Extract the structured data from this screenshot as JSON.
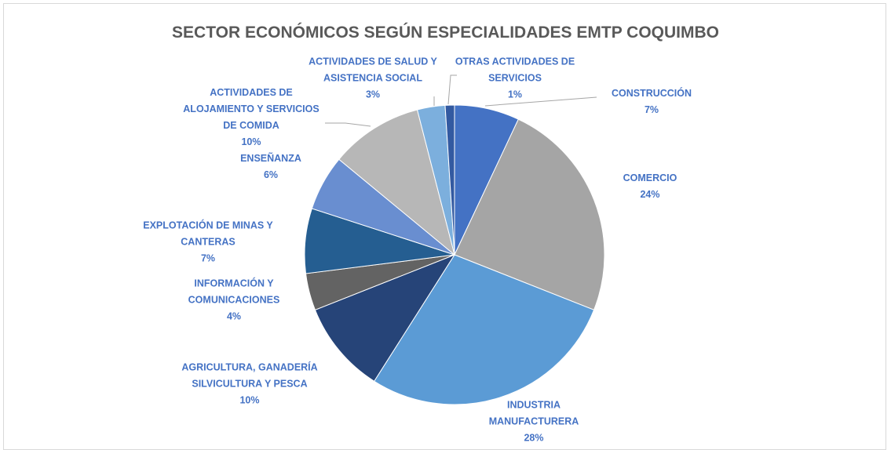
{
  "chart_data": {
    "type": "pie",
    "title": "SECTOR ECONÓMICOS SEGÚN ESPECIALIDADES EMTP COQUIMBO",
    "categories": [
      "CONSTRUCCIÓN",
      "COMERCIO",
      "INDUSTRIA MANUFACTURERA",
      "AGRICULTURA, GANADERÍA SILVICULTURA Y PESCA",
      "INFORMACIÓN Y COMUNICACIONES",
      "EXPLOTACIÓN DE MINAS Y CANTERAS",
      "ENSEÑANZA",
      "ACTIVIDADES DE ALOJAMIENTO Y SERVICIOS DE COMIDA",
      "ACTIVIDADES DE SALUD Y ASISTENCIA SOCIAL",
      "OTRAS ACTIVIDADES DE SERVICIOS"
    ],
    "values": [
      7,
      24,
      28,
      10,
      4,
      7,
      6,
      10,
      3,
      1
    ],
    "value_labels": [
      "7%",
      "24%",
      "28%",
      "10%",
      "4%",
      "7%",
      "6%",
      "10%",
      "3%",
      "1%"
    ],
    "colors": [
      "#4472c4",
      "#a5a5a5",
      "#5b9bd5",
      "#264478",
      "#636363",
      "#255e91",
      "#698ed0",
      "#b7b7b7",
      "#7cafdd",
      "#335aa1"
    ]
  }
}
